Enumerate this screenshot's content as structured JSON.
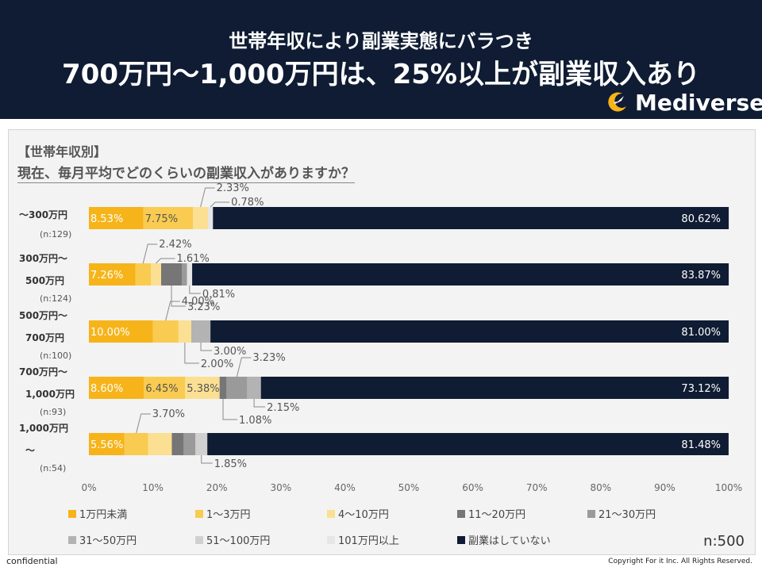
{
  "header": {
    "title_line1": "世帯年収により副業実態にバラつき",
    "title_line2": "700万円～1,000万円は、25%以上が副業収入あり",
    "logo_text": "Mediverse"
  },
  "chart_header": {
    "category": "【世帯年収別】",
    "question": "現在、毎月平均でどのくらいの副業収入がありますか？"
  },
  "chart_data": {
    "type": "bar",
    "orientation": "horizontal-stacked-100",
    "xlim": [
      0,
      100
    ],
    "xticks": [
      "0%",
      "10%",
      "20%",
      "30%",
      "40%",
      "50%",
      "60%",
      "70%",
      "80%",
      "90%",
      "100%"
    ],
    "legend_position": "bottom",
    "categories": [
      {
        "label_lines": [
          "～300万円"
        ],
        "n": "(n:129)"
      },
      {
        "label_lines": [
          "300万円～",
          "500万円"
        ],
        "n": "(n:124)"
      },
      {
        "label_lines": [
          "500万円～",
          "700万円"
        ],
        "n": "(n:100)"
      },
      {
        "label_lines": [
          "700万円～",
          "1,000万円"
        ],
        "n": "(n:93)"
      },
      {
        "label_lines": [
          "1,000万円",
          "～"
        ],
        "n": "(n:54)"
      }
    ],
    "series": [
      {
        "name": "1万円未満",
        "color": "#f6b41a",
        "values": [
          8.53,
          7.26,
          10.0,
          8.6,
          5.56
        ]
      },
      {
        "name": "1～3万円",
        "color": "#f9cb50",
        "values": [
          7.75,
          2.42,
          4.0,
          6.45,
          3.7
        ]
      },
      {
        "name": "4～10万円",
        "color": "#fbe093",
        "values": [
          2.33,
          1.61,
          2.0,
          5.38,
          3.7
        ]
      },
      {
        "name": "11～20万円",
        "color": "#767676",
        "values": [
          0.0,
          3.23,
          0.0,
          1.08,
          1.85
        ]
      },
      {
        "name": "21～30万円",
        "color": "#9a9a9a",
        "values": [
          0.0,
          0.81,
          0.0,
          3.23,
          1.85
        ]
      },
      {
        "name": "31～50万円",
        "color": "#b3b3b3",
        "values": [
          0.0,
          0.0,
          3.0,
          2.15,
          0.0
        ]
      },
      {
        "name": "51～100万円",
        "color": "#d0d0d0",
        "values": [
          0.0,
          0.0,
          0.0,
          0.0,
          1.85
        ]
      },
      {
        "name": "101万円以上",
        "color": "#e6e6e6",
        "values": [
          0.78,
          0.81,
          0.0,
          0.0,
          0.0
        ]
      },
      {
        "name": "副業はしていない",
        "color": "#0f1c33",
        "values": [
          80.62,
          83.87,
          81.0,
          73.12,
          81.48
        ]
      }
    ],
    "data_labels": [
      [
        "8.53%",
        "7.75%",
        "",
        "",
        "",
        "",
        "",
        "",
        "80.62%"
      ],
      [
        "7.26%",
        "",
        "",
        "",
        "",
        "",
        "",
        "",
        "83.87%"
      ],
      [
        "10.00%",
        "",
        "",
        "",
        "",
        "",
        "",
        "",
        "81.00%"
      ],
      [
        "8.60%",
        "6.45%",
        "5.38%",
        "",
        "",
        "",
        "",
        "",
        "73.12%"
      ],
      [
        "5.56%",
        "",
        "",
        "",
        "",
        "",
        "",
        "",
        "81.48%"
      ]
    ],
    "callouts": [
      {
        "row": 0,
        "series": 2,
        "text": "2.33%",
        "side": "above"
      },
      {
        "row": 0,
        "series": 7,
        "text": "0.78%",
        "side": "above"
      },
      {
        "row": 1,
        "series": 1,
        "text": "2.42%",
        "side": "above"
      },
      {
        "row": 1,
        "series": 2,
        "text": "1.61%",
        "side": "above"
      },
      {
        "row": 1,
        "series": 7,
        "text": "0.81%",
        "side": "below"
      },
      {
        "row": 1,
        "series": 3,
        "text": "3.23%",
        "side": "below"
      },
      {
        "row": 2,
        "series": 1,
        "text": "4.00%",
        "side": "above"
      },
      {
        "row": 2,
        "series": 5,
        "text": "3.00%",
        "side": "below"
      },
      {
        "row": 2,
        "series": 2,
        "text": "2.00%",
        "side": "below"
      },
      {
        "row": 3,
        "series": 4,
        "text": "3.23%",
        "side": "above"
      },
      {
        "row": 3,
        "series": 5,
        "text": "2.15%",
        "side": "below"
      },
      {
        "row": 3,
        "series": 3,
        "text": "1.08%",
        "side": "below"
      },
      {
        "row": 4,
        "series": 1,
        "text": "3.70%",
        "side": "above"
      },
      {
        "row": 4,
        "series": 6,
        "text": "1.85%",
        "side": "below"
      }
    ]
  },
  "footer": {
    "n_total": "n:500",
    "confidential": "confidential",
    "copyright": "Copyright For it Inc. All Rights Reserved."
  }
}
